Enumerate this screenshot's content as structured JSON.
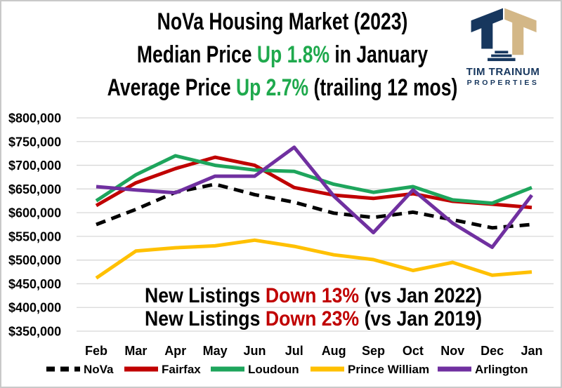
{
  "header": {
    "title_line1": "NoVa Housing Market (2023)",
    "line2_prefix": "Median Price ",
    "line2_highlight": "Up 1.8%",
    "line2_suffix": " in January",
    "line3_prefix": "Average Price ",
    "line3_highlight": "Up 2.7%",
    "line3_suffix": " (trailing 12 mos)",
    "highlight_color": "#1FA94D"
  },
  "logo": {
    "name_line1": "TIM TRAINUM",
    "name_line2": "PROPERTIES",
    "navy": "#17375E",
    "tan": "#D3B787"
  },
  "chart_data": {
    "type": "line",
    "title": "NoVa Housing Market (2023)",
    "xlabel": "",
    "ylabel": "",
    "grid": true,
    "legend_position": "bottom",
    "ylim": [
      350000,
      800000
    ],
    "ytick_step": 50000,
    "yticks": [
      800000,
      750000,
      700000,
      650000,
      600000,
      550000,
      500000,
      450000,
      400000,
      350000
    ],
    "categories": [
      "Feb",
      "Mar",
      "Apr",
      "May",
      "Jun",
      "Jul",
      "Aug",
      "Sep",
      "Oct",
      "Nov",
      "Dec",
      "Jan"
    ],
    "series": [
      {
        "name": "NoVa",
        "color": "#000000",
        "dashed": true,
        "values": [
          575000,
          607000,
          643000,
          660000,
          638000,
          622000,
          599000,
          590000,
          601000,
          585000,
          568000,
          575000
        ]
      },
      {
        "name": "Fairfax",
        "color": "#C00000",
        "dashed": false,
        "values": [
          615000,
          663000,
          693000,
          717000,
          700000,
          653000,
          637000,
          630000,
          640000,
          624000,
          618000,
          611000
        ]
      },
      {
        "name": "Loudoun",
        "color": "#1EA55C",
        "dashed": false,
        "values": [
          625000,
          680000,
          720000,
          700000,
          690000,
          687000,
          660000,
          643000,
          655000,
          627000,
          620000,
          653000
        ]
      },
      {
        "name": "Prince William",
        "color": "#FFC000",
        "dashed": false,
        "values": [
          462000,
          519000,
          526000,
          530000,
          542000,
          529000,
          511000,
          501000,
          478000,
          495000,
          468000,
          475000
        ]
      },
      {
        "name": "Arlington",
        "color": "#7030A0",
        "dashed": false,
        "values": [
          655000,
          648000,
          642000,
          677000,
          677000,
          738000,
          635000,
          558000,
          648000,
          578000,
          527000,
          637000
        ]
      }
    ],
    "annotations": [
      {
        "parts": [
          {
            "text": "New Listings ",
            "color": "#000000"
          },
          {
            "text": "Down 13%",
            "color": "#C00000"
          },
          {
            "text": " (vs Jan 2022)",
            "color": "#000000"
          }
        ]
      },
      {
        "parts": [
          {
            "text": "New Listings ",
            "color": "#000000"
          },
          {
            "text": "Down 23%",
            "color": "#C00000"
          },
          {
            "text": " (vs Jan 2019)",
            "color": "#000000"
          }
        ]
      }
    ],
    "gridline_color": "#D8D8D8"
  }
}
